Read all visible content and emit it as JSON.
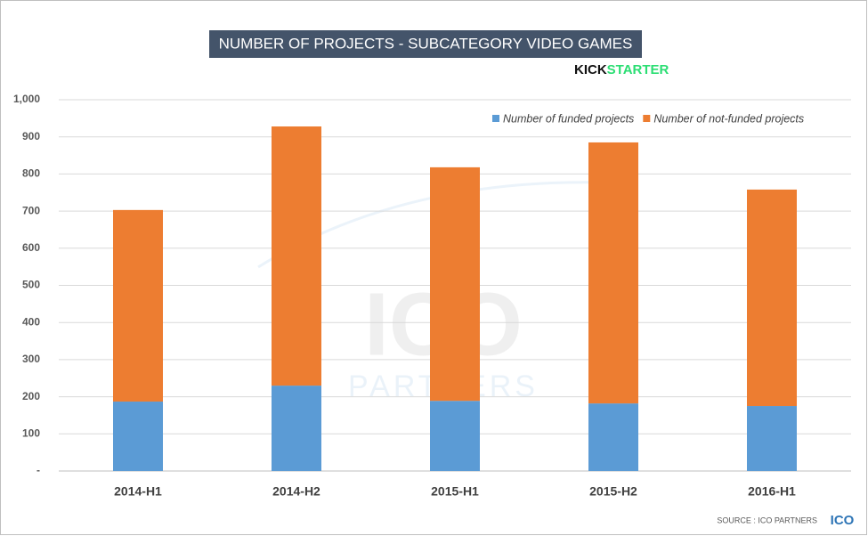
{
  "chart_data": {
    "type": "bar",
    "stacked": true,
    "title": "NUMBER OF PROJECTS - SUBCATEGORY VIDEO GAMES",
    "logo_kick": "KICK",
    "logo_starter": "STARTER",
    "source": "SOURCE : ICO PARTNERS",
    "source_logo": "ICO",
    "watermark": [
      "ICO",
      "PARTNERS"
    ],
    "categories": [
      "2014-H1",
      "2014-H2",
      "2015-H1",
      "2015-H2",
      "2016-H1"
    ],
    "series": [
      {
        "name": "Number of funded projects",
        "color": "#5b9bd5",
        "values": [
          187,
          230,
          189,
          182,
          175
        ]
      },
      {
        "name": "Number of not-funded projects",
        "color": "#ed7d31",
        "values": [
          516,
          698,
          629,
          703,
          583
        ]
      }
    ],
    "ylim": [
      0,
      1000
    ],
    "yticks": [
      {
        "value": 0,
        "label": "-"
      },
      100,
      200,
      300,
      400,
      500,
      600,
      700,
      800,
      900,
      {
        "value": 1000,
        "label": "1,000"
      }
    ],
    "grid": true,
    "legend": "top-right"
  }
}
